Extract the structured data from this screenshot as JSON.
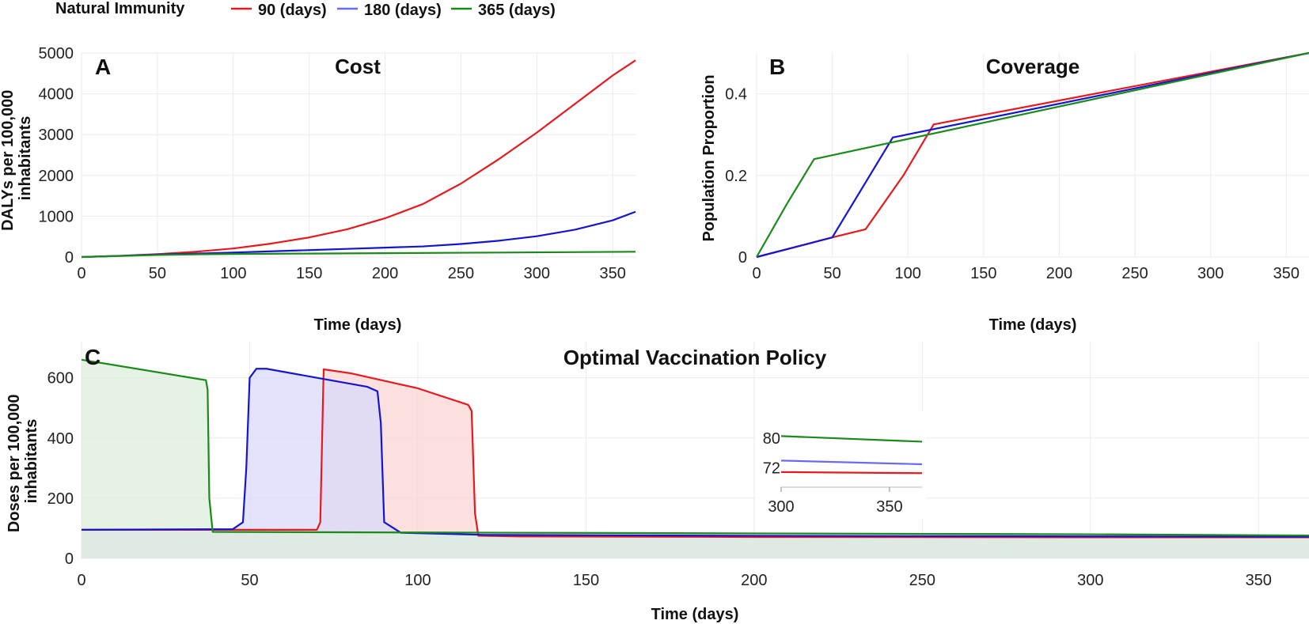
{
  "legend": {
    "title": "Natural Immunity",
    "entries": [
      {
        "label": "90 (days)",
        "color": "#e8191e"
      },
      {
        "label": "180 (days)",
        "color": "#6a6af0"
      },
      {
        "label": "365 (days)",
        "color": "#1a8a1a"
      }
    ]
  },
  "panels": {
    "A": {
      "letter": "A",
      "title": "Cost"
    },
    "B": {
      "letter": "B",
      "title": "Coverage"
    },
    "C": {
      "letter": "C",
      "title": "Optimal Vaccination Policy"
    }
  },
  "chart_data": [
    {
      "id": "A",
      "type": "line",
      "title": "Cost",
      "xlabel": "Time (days)",
      "ylabel": "DALYs per 100,000 inhabitants",
      "xlim": [
        0,
        365
      ],
      "ylim": [
        0,
        5000
      ],
      "xticks": [
        0,
        50,
        100,
        150,
        200,
        250,
        300,
        350
      ],
      "yticks": [
        0,
        1000,
        2000,
        3000,
        4000,
        5000
      ],
      "grid": true,
      "series": [
        {
          "name": "90 (days)",
          "color": "#e8191e",
          "x": [
            0,
            25,
            50,
            75,
            100,
            125,
            150,
            175,
            200,
            225,
            250,
            275,
            300,
            325,
            350,
            365
          ],
          "y": [
            0,
            30,
            70,
            130,
            210,
            330,
            480,
            680,
            950,
            1300,
            1800,
            2400,
            3050,
            3750,
            4450,
            4820
          ]
        },
        {
          "name": "180 (days)",
          "color": "#1515d0",
          "x": [
            0,
            25,
            50,
            75,
            100,
            125,
            150,
            175,
            200,
            225,
            250,
            275,
            300,
            325,
            350,
            365
          ],
          "y": [
            0,
            28,
            60,
            85,
            110,
            140,
            170,
            200,
            230,
            260,
            320,
            400,
            510,
            670,
            900,
            1110
          ]
        },
        {
          "name": "365 (days)",
          "color": "#1a8a1a",
          "x": [
            0,
            25,
            50,
            75,
            100,
            150,
            200,
            250,
            300,
            365
          ],
          "y": [
            0,
            25,
            50,
            65,
            75,
            85,
            95,
            105,
            115,
            130
          ]
        }
      ]
    },
    {
      "id": "B",
      "type": "line",
      "title": "Coverage",
      "xlabel": "Time (days)",
      "ylabel": "Population Proportion",
      "xlim": [
        0,
        365
      ],
      "ylim": [
        0,
        0.5
      ],
      "xticks": [
        0,
        50,
        100,
        150,
        200,
        250,
        300,
        350
      ],
      "yticks": [
        0,
        0.2,
        0.4
      ],
      "ytick_labels": [
        "0",
        "0.2",
        "0.4"
      ],
      "grid": true,
      "series": [
        {
          "name": "90 (days)",
          "color": "#e8191e",
          "x": [
            0,
            50,
            72,
            97,
            117,
            365
          ],
          "y": [
            0,
            0.048,
            0.068,
            0.2,
            0.325,
            0.5
          ]
        },
        {
          "name": "180 (days)",
          "color": "#1515d0",
          "x": [
            0,
            50,
            90,
            365
          ],
          "y": [
            0,
            0.048,
            0.293,
            0.5
          ]
        },
        {
          "name": "365 (days)",
          "color": "#1a8a1a",
          "x": [
            0,
            20,
            38,
            365
          ],
          "y": [
            0,
            0.13,
            0.24,
            0.5
          ]
        }
      ]
    },
    {
      "id": "C",
      "type": "area",
      "title": "Optimal Vaccination Policy",
      "xlabel": "Time (days)",
      "ylabel": "Doses per 100,000 inhabitants",
      "xlim": [
        0,
        365
      ],
      "ylim": [
        0,
        720
      ],
      "xticks": [
        0,
        50,
        100,
        150,
        200,
        250,
        300,
        350
      ],
      "yticks": [
        0,
        200,
        400,
        600
      ],
      "grid": true,
      "series": [
        {
          "name": "90 (days)",
          "color": "#e8191e",
          "fill": "#fbd6d6",
          "x": [
            0,
            70,
            71,
            72,
            80,
            100,
            115,
            116,
            117,
            118,
            130,
            200,
            300,
            365
          ],
          "y": [
            95,
            95,
            120,
            628,
            615,
            565,
            510,
            490,
            150,
            75,
            73,
            71,
            70,
            70
          ]
        },
        {
          "name": "180 (days)",
          "color": "#1515d0",
          "fill": "#d9d9fb",
          "x": [
            0,
            45,
            48,
            49,
            50,
            52,
            55,
            70,
            85,
            88,
            89,
            90,
            95,
            120,
            200,
            300,
            365
          ],
          "y": [
            95,
            97,
            120,
            300,
            600,
            630,
            630,
            600,
            570,
            555,
            450,
            120,
            85,
            78,
            75,
            73,
            72
          ]
        },
        {
          "name": "365 (days)",
          "color": "#1a8a1a",
          "fill": "#dcefdc",
          "x": [
            0,
            37,
            37.5,
            38,
            39,
            100,
            200,
            300,
            365
          ],
          "y": [
            660,
            592,
            560,
            200,
            88,
            86,
            83,
            80,
            76
          ]
        }
      ],
      "inset": {
        "xlim": [
          300,
          365
        ],
        "xticks": [
          300,
          350
        ],
        "yticks": [
          72,
          80
        ],
        "ylim": [
          68,
          84
        ],
        "series": [
          {
            "name": "90 (days)",
            "color": "#e8191e",
            "x": [
              300,
              365
            ],
            "y": [
              70.8,
              70.5
            ]
          },
          {
            "name": "180 (days)",
            "color": "#6a6af0",
            "x": [
              300,
              365
            ],
            "y": [
              73.9,
              72.9
            ]
          },
          {
            "name": "365 (days)",
            "color": "#1a8a1a",
            "x": [
              300,
              365
            ],
            "y": [
              80.5,
              79.0
            ]
          }
        ]
      }
    }
  ]
}
